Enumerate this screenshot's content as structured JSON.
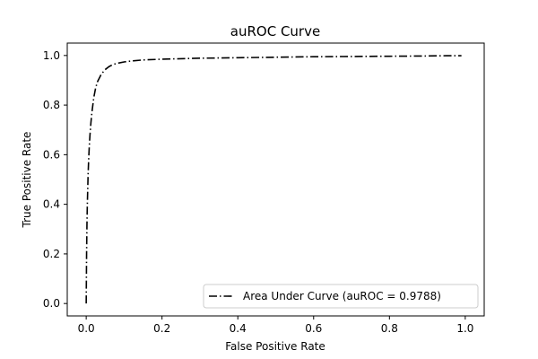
{
  "chart_data": {
    "type": "line",
    "title": "auROC Curve",
    "xlabel": "False Positive Rate",
    "ylabel": "True Positive Rate",
    "xlim": [
      -0.05,
      1.05
    ],
    "ylim": [
      -0.05,
      1.05
    ],
    "xticks": [
      0.0,
      0.2,
      0.4,
      0.6,
      0.8,
      1.0
    ],
    "yticks": [
      0.0,
      0.2,
      0.4,
      0.6,
      0.8,
      1.0
    ],
    "xtick_labels": [
      "0.0",
      "0.2",
      "0.4",
      "0.6",
      "0.8",
      "1.0"
    ],
    "ytick_labels": [
      "0.0",
      "0.2",
      "0.4",
      "0.6",
      "0.8",
      "1.0"
    ],
    "grid": false,
    "legend": {
      "location": "lower right"
    },
    "series": [
      {
        "name": "Area Under Curve (auROC = 0.9788)",
        "color": "#000000",
        "line_style": "dash-dot",
        "x": [
          0.0,
          0.0005,
          0.001,
          0.002,
          0.003,
          0.004,
          0.005,
          0.0065,
          0.008,
          0.01,
          0.0125,
          0.015,
          0.0175,
          0.02,
          0.025,
          0.03,
          0.035,
          0.04,
          0.05,
          0.06,
          0.07,
          0.08,
          0.1,
          0.12,
          0.15,
          0.2,
          0.25,
          0.3,
          0.4,
          0.5,
          0.6,
          0.7,
          0.8,
          0.9,
          0.95,
          0.99
        ],
        "y": [
          0.0,
          0.1,
          0.2,
          0.32,
          0.4,
          0.46,
          0.52,
          0.58,
          0.63,
          0.68,
          0.73,
          0.77,
          0.8,
          0.83,
          0.87,
          0.895,
          0.91,
          0.925,
          0.943,
          0.955,
          0.963,
          0.968,
          0.974,
          0.978,
          0.982,
          0.985,
          0.987,
          0.989,
          0.991,
          0.993,
          0.995,
          0.996,
          0.997,
          0.998,
          0.999,
          0.999
        ]
      }
    ]
  }
}
